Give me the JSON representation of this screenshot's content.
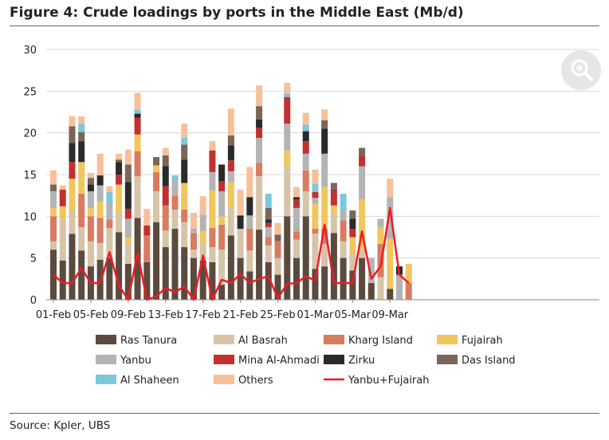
{
  "title": "Figure 4: Crude loadings by ports in the Middle East (Mb/d)",
  "source": "Source: Kpler, UBS",
  "zoom_icon": "magnifier-plus-icon",
  "chart_data": {
    "type": "bar",
    "stacked": true,
    "ylim": [
      0,
      30
    ],
    "yticks": [
      0,
      5,
      10,
      15,
      20,
      25,
      30
    ],
    "grid": true,
    "legend_position": "bottom",
    "x_tick_labels": [
      "01-Feb",
      "05-Feb",
      "09-Feb",
      "13-Feb",
      "17-Feb",
      "21-Feb",
      "25-Feb",
      "01-Mar",
      "05-Mar",
      "09-Mar"
    ],
    "x_tick_indices": [
      0,
      4,
      8,
      12,
      16,
      20,
      24,
      28,
      32,
      36
    ],
    "colors": {
      "Ras Tanura": "#5b4a3e",
      "Al Basrah": "#d7c4a8",
      "Kharg Island": "#d97b60",
      "Fujairah": "#f0c75e",
      "Yanbu": "#b4b4b4",
      "Mina Al-Ahmadi": "#c0312f",
      "Zirku": "#2a2a2a",
      "Das Island": "#7a6558",
      "Al Shaheen": "#7cc8dc",
      "Others": "#f7c09a",
      "Yanbu+Fujairah": "#ee1c25"
    },
    "legend": [
      "Ras Tanura",
      "Al Basrah",
      "Kharg Island",
      "Fujairah",
      "Yanbu",
      "Mina Al-Ahmadi",
      "Zirku",
      "Das Island",
      "Al Shaheen",
      "Others",
      "Yanbu+Fujairah"
    ],
    "bar_series": [
      "Ras Tanura",
      "Al Basrah",
      "Kharg Island",
      "Fujairah",
      "Yanbu",
      "Mina Al-Ahmadi",
      "Zirku",
      "Das Island",
      "Al Shaheen",
      "Others"
    ],
    "bars": [
      [
        6,
        1,
        3,
        1,
        2,
        0,
        0,
        0.8,
        0,
        1.7
      ],
      [
        4.7,
        5,
        0,
        1.5,
        0,
        2,
        0,
        0,
        0,
        0.5
      ],
      [
        7.9,
        2.8,
        0,
        3.8,
        0,
        2,
        2.3,
        2,
        0,
        1.2
      ],
      [
        5.9,
        2.8,
        4,
        3.8,
        0,
        0,
        2.5,
        1.1,
        1,
        0.9
      ],
      [
        4,
        3,
        3,
        1,
        2,
        0,
        0.8,
        0.8,
        0,
        0.6
      ],
      [
        4.8,
        2,
        3,
        2,
        1.9,
        0,
        1.2,
        0,
        0,
        2.6
      ],
      [
        5,
        3.6,
        1,
        0,
        2,
        0,
        0,
        0,
        1.3,
        0.7
      ],
      [
        8.1,
        2.3,
        0,
        3.4,
        0,
        1.2,
        1.5,
        0.3,
        0,
        0.7
      ],
      [
        4.3,
        2.5,
        0,
        0.7,
        2.2,
        1.2,
        3.2,
        2.1,
        0,
        1.8
      ],
      [
        9.8,
        5,
        3,
        2,
        0,
        2,
        0.5,
        0,
        0.5,
        2
      ],
      [
        4.5,
        0,
        3.2,
        0,
        0,
        1.2,
        0,
        0,
        0,
        2
      ],
      [
        9.3,
        3.7,
        2.3,
        0.8,
        0,
        0,
        0,
        1,
        0,
        0
      ],
      [
        6.3,
        2,
        3,
        0,
        0,
        2.3,
        2.4,
        1.3,
        0,
        0.9
      ],
      [
        8.5,
        2.3,
        1.7,
        0,
        1.8,
        0,
        0,
        0,
        0.6,
        0
      ],
      [
        6.3,
        3,
        1.5,
        3.2,
        0,
        0,
        2.8,
        1.8,
        0.8,
        1.7
      ],
      [
        5,
        1,
        2,
        0,
        0.5,
        0,
        0,
        0,
        0,
        1.9
      ],
      [
        4.7,
        2,
        0,
        1.5,
        2,
        0,
        0,
        0,
        0,
        2.2
      ],
      [
        4.5,
        1.8,
        2.3,
        4.5,
        2.2,
        2.6,
        0,
        0,
        0,
        1.1
      ],
      [
        1.8,
        4.2,
        3,
        1,
        3,
        1.2,
        2,
        0,
        0,
        0
      ],
      [
        7.7,
        3.4,
        0,
        3,
        1.3,
        1.3,
        1.8,
        1.2,
        0,
        3.2
      ],
      [
        5,
        3.5,
        0,
        0,
        0,
        0,
        1.6,
        0,
        0,
        3.1
      ],
      [
        3.4,
        2.5,
        2.6,
        0,
        1.6,
        0,
        2.2,
        0,
        0,
        3.6
      ],
      [
        8.4,
        6.4,
        1.6,
        0,
        3,
        1.2,
        1,
        1.6,
        0,
        2.5
      ],
      [
        4.5,
        2,
        1,
        0,
        1.2,
        0.5,
        0.4,
        1.4,
        1.7,
        0
      ],
      [
        3,
        2,
        2,
        0,
        0,
        0,
        0,
        0.8,
        0,
        1.4
      ],
      [
        10,
        5.9,
        0,
        2,
        3.2,
        3.2,
        0,
        0,
        0.4,
        1.3
      ],
      [
        5,
        2.2,
        1,
        0,
        2.8,
        1,
        0.3,
        0,
        0,
        1.2
      ],
      [
        10,
        3,
        2.5,
        0,
        2,
        1.5,
        1.2,
        0,
        0.8,
        1.4
      ],
      [
        3.7,
        4.2,
        0.6,
        3,
        0.7,
        0.7,
        0,
        0,
        1,
        1.7
      ],
      [
        4,
        2.7,
        1.8,
        5,
        4,
        0,
        3,
        1,
        0,
        1.3
      ],
      [
        8,
        2.3,
        0,
        1,
        0,
        2,
        0,
        0.7,
        0,
        0
      ],
      [
        5,
        2,
        2.5,
        0,
        1.2,
        0,
        0,
        0,
        2,
        0
      ],
      [
        3.5,
        2,
        0,
        2,
        0,
        1,
        1.2,
        1,
        0,
        0
      ],
      [
        5,
        1,
        0,
        6,
        4,
        1.2,
        0,
        1,
        0,
        0
      ],
      [
        2,
        0,
        0,
        0,
        3,
        0,
        0,
        0,
        0,
        0
      ],
      [
        0,
        2.7,
        4,
        2,
        1,
        0,
        0,
        0,
        0,
        0
      ],
      [
        1.3,
        0,
        0,
        6,
        5,
        0,
        0,
        0,
        0,
        2.2
      ],
      [
        0,
        0,
        0,
        0,
        3,
        0,
        1,
        0,
        0,
        0
      ],
      [
        0,
        0,
        2,
        2.3,
        0,
        0,
        0,
        0,
        0,
        0
      ]
    ],
    "line_series": {
      "name": "Yanbu+Fujairah",
      "values": [
        3,
        2,
        2,
        3.8,
        2,
        2,
        5.7,
        1.7,
        0,
        5.6,
        0,
        0.4,
        1.4,
        0.9,
        1.6,
        0,
        5.3,
        0,
        2.4,
        2,
        3.1,
        2,
        2.5,
        2.8,
        0.2,
        1.9,
        2,
        2.8,
        2.3,
        9,
        2,
        2,
        2,
        8.2,
        2.5,
        4,
        11,
        3,
        2
      ]
    }
  }
}
